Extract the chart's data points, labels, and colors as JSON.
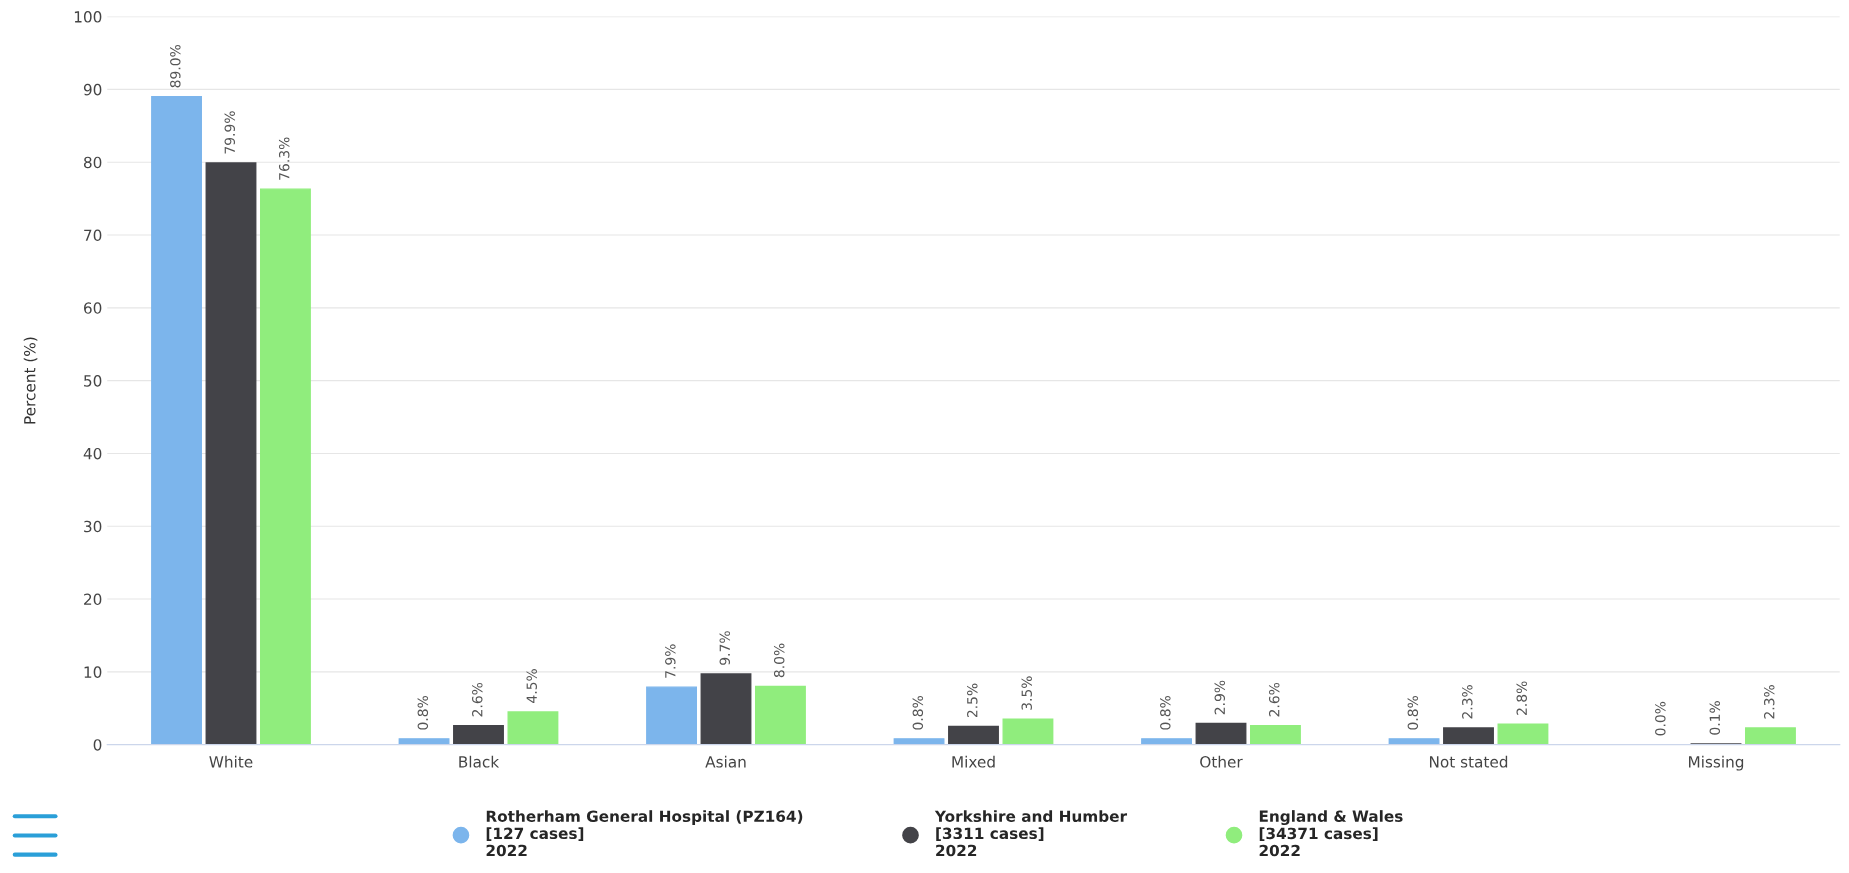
{
  "chart_data": {
    "type": "bar",
    "ylabel": "Percent (%)",
    "categories": [
      "White",
      "Black",
      "Asian",
      "Mixed",
      "Other",
      "Not stated",
      "Missing"
    ],
    "series": [
      {
        "name": "Rotherham General Hospital (PZ164)\n[127 cases]\n2022",
        "color": "#7cb5ec",
        "values": [
          89.0,
          0.8,
          7.9,
          0.8,
          0.8,
          0.8,
          0.0
        ],
        "value_labels": [
          "89.0%",
          "0.8%",
          "7.9%",
          "0.8%",
          "0.8%",
          "0.8%",
          "0.0%"
        ]
      },
      {
        "name": "Yorkshire and Humber\n[3311 cases]\n2022",
        "color": "#434348",
        "values": [
          79.9,
          2.6,
          9.7,
          2.5,
          2.9,
          2.3,
          0.1
        ],
        "value_labels": [
          "79.9%",
          "2.6%",
          "9.7%",
          "2.5%",
          "2.9%",
          "2.3%",
          "0.1%"
        ]
      },
      {
        "name": "England & Wales\n[34371 cases]\n2022",
        "color": "#90ed7d",
        "values": [
          76.3,
          4.5,
          8.0,
          3.5,
          2.6,
          2.8,
          2.3
        ],
        "value_labels": [
          "76.3%",
          "4.5%",
          "8.0%",
          "3.5%",
          "2.6%",
          "2.8%",
          "2.3%"
        ]
      }
    ],
    "ylim": [
      0,
      100
    ],
    "yticks": [
      0,
      10,
      20,
      30,
      40,
      50,
      60,
      70,
      80,
      90,
      100
    ],
    "grid": "y",
    "legend": "bottom",
    "marker": "circle"
  }
}
